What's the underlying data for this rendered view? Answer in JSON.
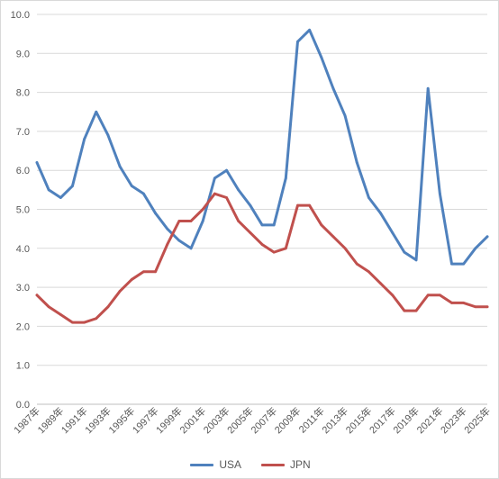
{
  "chart_data": {
    "type": "line",
    "title": "",
    "xlabel": "",
    "ylabel": "",
    "ylim": [
      0,
      10
    ],
    "yticks": [
      "0.0",
      "1.0",
      "2.0",
      "3.0",
      "4.0",
      "5.0",
      "6.0",
      "7.0",
      "8.0",
      "9.0",
      "10.0"
    ],
    "grid": true,
    "legend_position": "bottom",
    "x": [
      "1987年",
      "1988年",
      "1989年",
      "1990年",
      "1991年",
      "1992年",
      "1993年",
      "1994年",
      "1995年",
      "1996年",
      "1997年",
      "1998年",
      "1999年",
      "2000年",
      "2001年",
      "2002年",
      "2003年",
      "2004年",
      "2005年",
      "2006年",
      "2007年",
      "2008年",
      "2009年",
      "2010年",
      "2011年",
      "2012年",
      "2013年",
      "2014年",
      "2015年",
      "2016年",
      "2017年",
      "2018年",
      "2019年",
      "2020年",
      "2021年",
      "2022年",
      "2023年",
      "2024年",
      "2025年"
    ],
    "xtick_labels": [
      "1987年",
      "1989年",
      "1991年",
      "1993年",
      "1995年",
      "1997年",
      "1999年",
      "2001年",
      "2003年",
      "2005年",
      "2007年",
      "2009年",
      "2011年",
      "2013年",
      "2015年",
      "2017年",
      "2019年",
      "2021年",
      "2023年",
      "2025年"
    ],
    "series": [
      {
        "name": "USA",
        "color": "#4f81bd",
        "values": [
          6.2,
          5.5,
          5.3,
          5.6,
          6.8,
          7.5,
          6.9,
          6.1,
          5.6,
          5.4,
          4.9,
          4.5,
          4.2,
          4.0,
          4.7,
          5.8,
          6.0,
          5.5,
          5.1,
          4.6,
          4.6,
          5.8,
          9.3,
          9.6,
          8.9,
          8.1,
          7.4,
          6.2,
          5.3,
          4.9,
          4.4,
          3.9,
          3.7,
          8.1,
          5.4,
          3.6,
          3.6,
          4.0,
          4.3
        ]
      },
      {
        "name": "JPN",
        "color": "#c0504d",
        "values": [
          2.8,
          2.5,
          2.3,
          2.1,
          2.1,
          2.2,
          2.5,
          2.9,
          3.2,
          3.4,
          3.4,
          4.1,
          4.7,
          4.7,
          5.0,
          5.4,
          5.3,
          4.7,
          4.4,
          4.1,
          3.9,
          4.0,
          5.1,
          5.1,
          4.6,
          4.3,
          4.0,
          3.6,
          3.4,
          3.1,
          2.8,
          2.4,
          2.4,
          2.8,
          2.8,
          2.6,
          2.6,
          2.5,
          2.5
        ]
      }
    ]
  }
}
